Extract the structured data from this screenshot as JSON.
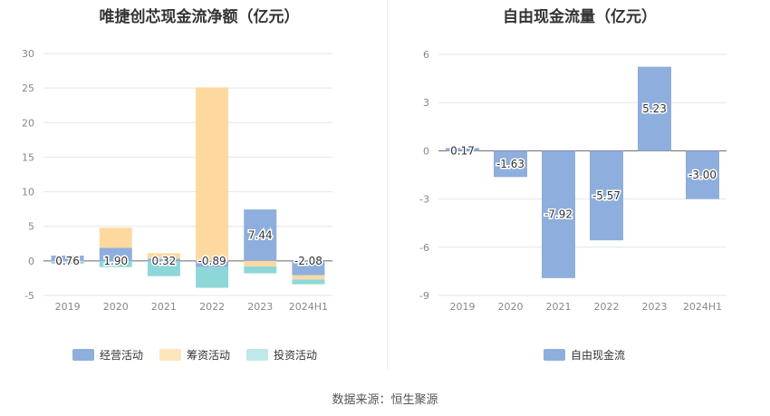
{
  "chart_data": [
    {
      "type": "bar",
      "stacked": true,
      "title": "唯捷创芯现金流净额（亿元）",
      "categories": [
        "2019",
        "2020",
        "2021",
        "2022",
        "2023",
        "2024H1"
      ],
      "ylim": [
        -5,
        30
      ],
      "yticks": [
        -5,
        0,
        5,
        10,
        15,
        20,
        25,
        30
      ],
      "grid": true,
      "series": [
        {
          "name": "经营活动",
          "color": "#8eaedd",
          "values": [
            0.76,
            1.9,
            0.32,
            -0.89,
            7.44,
            -2.08
          ],
          "labels": [
            "0.76",
            "1.90",
            "0.32",
            "-0.89",
            "7.44",
            "-2.08"
          ]
        },
        {
          "name": "筹资活动",
          "color": "#fdd9a0",
          "values": [
            -0.1,
            2.9,
            0.8,
            25.1,
            -0.8,
            -0.6
          ]
        },
        {
          "name": "投资活动",
          "color": "#8ed7d9",
          "values": [
            -0.3,
            -0.9,
            -2.2,
            -3.0,
            -1.0,
            -0.7
          ]
        }
      ]
    },
    {
      "type": "bar",
      "title": "自由现金流量（亿元）",
      "categories": [
        "2019",
        "2020",
        "2021",
        "2022",
        "2023",
        "2024H1"
      ],
      "ylim": [
        -9,
        6
      ],
      "yticks": [
        -9,
        -6,
        -3,
        0,
        3,
        6
      ],
      "grid": true,
      "series": [
        {
          "name": "自由现金流",
          "color": "#8eaedd",
          "values": [
            0.17,
            -1.63,
            -7.92,
            -5.57,
            5.23,
            -3.0
          ],
          "labels": [
            "0.17",
            "-1.63",
            "-7.92",
            "-5.57",
            "5.23",
            "-3.00"
          ]
        }
      ]
    }
  ],
  "source_text": "数据来源：恒生聚源"
}
